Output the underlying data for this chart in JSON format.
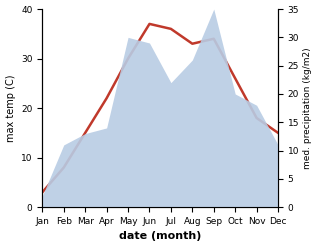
{
  "months": [
    "Jan",
    "Feb",
    "Mar",
    "Apr",
    "May",
    "Jun",
    "Jul",
    "Aug",
    "Sep",
    "Oct",
    "Nov",
    "Dec"
  ],
  "month_indices": [
    0,
    1,
    2,
    3,
    4,
    5,
    6,
    7,
    8,
    9,
    10,
    11
  ],
  "temperature": [
    3,
    8,
    15,
    22,
    30,
    37,
    36,
    33,
    34,
    26,
    18,
    15
  ],
  "precipitation": [
    2,
    11,
    13,
    14,
    30,
    29,
    22,
    26,
    35,
    20,
    18,
    11
  ],
  "temp_color": "#c0392b",
  "precip_color": "#b8cce4",
  "left_ylim": [
    0,
    40
  ],
  "right_ylim": [
    0,
    35
  ],
  "left_yticks": [
    0,
    10,
    20,
    30,
    40
  ],
  "right_yticks": [
    0,
    5,
    10,
    15,
    20,
    25,
    30,
    35
  ],
  "left_ylabel": "max temp (C)",
  "right_ylabel": "med. precipitation (kg/m2)",
  "xlabel": "date (month)",
  "figsize": [
    3.18,
    2.47
  ],
  "dpi": 100
}
